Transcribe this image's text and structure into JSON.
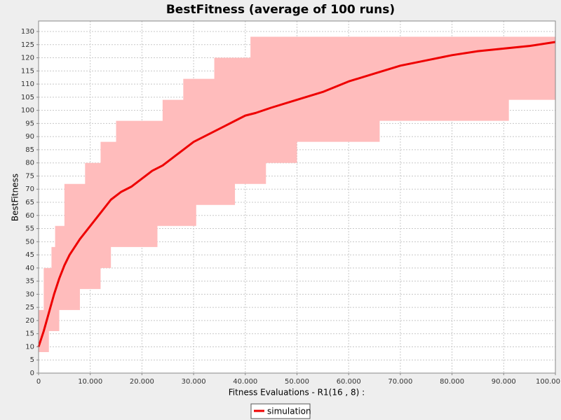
{
  "chart_data": {
    "type": "line",
    "title": "BestFitness (average of 100 runs)",
    "x_label": "Fitness Evaluations - R1(16 , 8) :",
    "y_label": "BestFitness",
    "xlim": [
      0,
      100000
    ],
    "ylim": [
      0,
      134
    ],
    "xticks": [
      0,
      {
        "value": 10000,
        "label": "10.000"
      },
      {
        "value": 20000,
        "label": "20.000"
      },
      {
        "value": 30000,
        "label": "30.000"
      },
      {
        "value": 40000,
        "label": "40.000"
      },
      {
        "value": 50000,
        "label": "50.000"
      },
      {
        "value": 60000,
        "label": "60.000"
      },
      {
        "value": 70000,
        "label": "70.000"
      },
      {
        "value": 80000,
        "label": "80.000"
      },
      {
        "value": 90000,
        "label": "90.000"
      },
      {
        "value": 100000,
        "label": "100.00"
      }
    ],
    "yticks": [
      0,
      5,
      10,
      15,
      20,
      25,
      30,
      35,
      40,
      45,
      50,
      55,
      60,
      65,
      70,
      75,
      80,
      85,
      90,
      95,
      100,
      105,
      110,
      115,
      120,
      125,
      130
    ],
    "grid": true,
    "legend": "bottom",
    "band": {
      "color": "#ffbcbc",
      "x": [
        0,
        1000,
        1000,
        2000,
        2000,
        2500,
        2500,
        3200,
        3200,
        4000,
        4000,
        5000,
        5000,
        8000,
        8000,
        9000,
        9000,
        12000,
        12000,
        14000,
        14000,
        15000,
        15000,
        23000,
        23000,
        24000,
        24000,
        28000,
        28000,
        30500,
        30500,
        34000,
        34000,
        38000,
        38000,
        41000,
        41000,
        44000,
        44000,
        50000,
        50000,
        66000,
        66000,
        91000,
        91000,
        100000
      ],
      "upper": [
        24,
        24,
        40,
        40,
        40,
        40,
        48,
        48,
        56,
        56,
        56,
        56,
        72,
        72,
        72,
        72,
        80,
        80,
        88,
        88,
        88,
        88,
        96,
        96,
        96,
        96,
        104,
        104,
        112,
        112,
        112,
        112,
        120,
        120,
        120,
        120,
        128,
        128,
        128,
        128,
        128,
        128,
        128,
        128,
        128,
        128
      ],
      "lower": [
        8,
        8,
        8,
        8,
        16,
        16,
        16,
        16,
        16,
        16,
        24,
        24,
        24,
        24,
        32,
        32,
        32,
        32,
        40,
        40,
        48,
        48,
        48,
        48,
        56,
        56,
        56,
        56,
        56,
        56,
        64,
        64,
        64,
        64,
        72,
        72,
        72,
        72,
        80,
        80,
        88,
        88,
        96,
        96,
        104,
        104
      ]
    },
    "series": [
      {
        "name": "simulation",
        "color": "#ee0000",
        "x": [
          0,
          1000,
          2000,
          3000,
          4000,
          5000,
          6000,
          8000,
          10000,
          12000,
          14000,
          16000,
          18000,
          20000,
          22000,
          24000,
          26000,
          28000,
          30000,
          32000,
          34000,
          36000,
          38000,
          40000,
          42000,
          45000,
          50000,
          55000,
          60000,
          65000,
          70000,
          75000,
          80000,
          85000,
          90000,
          95000,
          100000
        ],
        "values": [
          10,
          16,
          23,
          30,
          36,
          41,
          45,
          51,
          56,
          61,
          66,
          69,
          71,
          74,
          77,
          79,
          82,
          85,
          88,
          90,
          92,
          94,
          96,
          98,
          99,
          101,
          104,
          107,
          111,
          114,
          117,
          119,
          121,
          122.5,
          123.5,
          124.5,
          126
        ]
      }
    ]
  }
}
